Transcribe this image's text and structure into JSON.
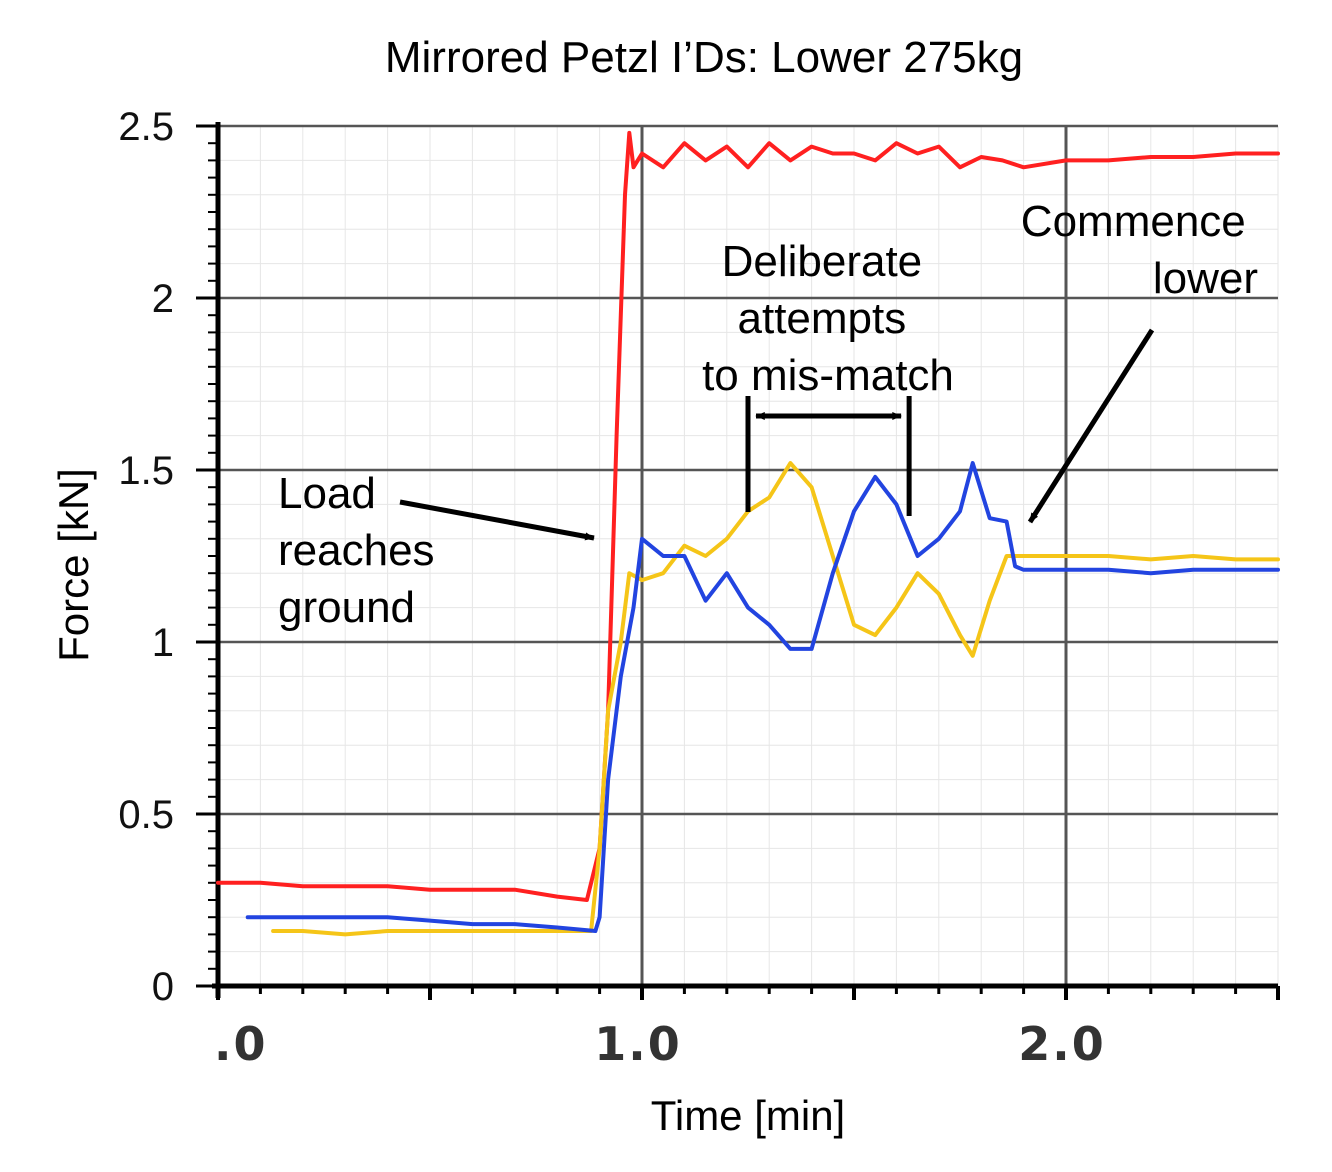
{
  "chart_data": {
    "type": "line",
    "title": "Mirrored Petzl I’Ds: Lower 275kg",
    "xlabel": "Time [min]",
    "ylabel": "Force [kN]",
    "xlim": [
      0,
      2.5
    ],
    "ylim": [
      0,
      2.5
    ],
    "x_ticks": [
      0,
      1,
      2
    ],
    "x_tick_labels": [
      ".0",
      "1.0",
      "2.0"
    ],
    "y_ticks": [
      0,
      0.5,
      1,
      1.5,
      2,
      2.5
    ],
    "y_tick_labels": [
      "0",
      "0.5",
      "1",
      "1.5",
      "2",
      "2.5"
    ],
    "grid": true,
    "legend": "none",
    "series": [
      {
        "color": "#ff2020",
        "x": [
          0.0,
          0.1,
          0.2,
          0.3,
          0.4,
          0.5,
          0.6,
          0.7,
          0.8,
          0.87,
          0.9,
          0.92,
          0.94,
          0.96,
          0.97,
          0.98,
          1.0,
          1.05,
          1.1,
          1.15,
          1.2,
          1.25,
          1.3,
          1.35,
          1.4,
          1.45,
          1.5,
          1.55,
          1.6,
          1.65,
          1.7,
          1.75,
          1.8,
          1.85,
          1.9,
          2.0,
          2.1,
          2.2,
          2.3,
          2.4,
          2.5
        ],
        "y": [
          0.3,
          0.3,
          0.29,
          0.29,
          0.29,
          0.28,
          0.28,
          0.28,
          0.26,
          0.25,
          0.4,
          0.8,
          1.6,
          2.3,
          2.48,
          2.38,
          2.42,
          2.38,
          2.45,
          2.4,
          2.44,
          2.38,
          2.45,
          2.4,
          2.44,
          2.42,
          2.42,
          2.4,
          2.45,
          2.42,
          2.44,
          2.38,
          2.41,
          2.4,
          2.38,
          2.4,
          2.4,
          2.41,
          2.41,
          2.42,
          2.42
        ]
      },
      {
        "color": "#f5c518",
        "x": [
          0.13,
          0.2,
          0.3,
          0.4,
          0.5,
          0.6,
          0.7,
          0.8,
          0.88,
          0.9,
          0.92,
          0.95,
          0.97,
          1.0,
          1.05,
          1.1,
          1.15,
          1.2,
          1.25,
          1.3,
          1.35,
          1.4,
          1.45,
          1.5,
          1.55,
          1.6,
          1.65,
          1.7,
          1.75,
          1.78,
          1.82,
          1.86,
          1.9,
          2.0,
          2.1,
          2.2,
          2.3,
          2.4,
          2.5
        ],
        "y": [
          0.16,
          0.16,
          0.15,
          0.16,
          0.16,
          0.16,
          0.16,
          0.16,
          0.16,
          0.4,
          0.8,
          1.0,
          1.2,
          1.18,
          1.2,
          1.28,
          1.25,
          1.3,
          1.38,
          1.42,
          1.52,
          1.45,
          1.25,
          1.05,
          1.02,
          1.1,
          1.2,
          1.14,
          1.02,
          0.96,
          1.12,
          1.25,
          1.25,
          1.25,
          1.25,
          1.24,
          1.25,
          1.24,
          1.24
        ]
      },
      {
        "color": "#2244e0",
        "x": [
          0.07,
          0.1,
          0.2,
          0.3,
          0.4,
          0.5,
          0.6,
          0.7,
          0.8,
          0.89,
          0.9,
          0.92,
          0.95,
          0.98,
          1.0,
          1.05,
          1.1,
          1.15,
          1.2,
          1.25,
          1.3,
          1.35,
          1.4,
          1.45,
          1.5,
          1.55,
          1.6,
          1.65,
          1.7,
          1.75,
          1.78,
          1.82,
          1.86,
          1.88,
          1.9,
          2.0,
          2.1,
          2.2,
          2.3,
          2.4,
          2.5
        ],
        "y": [
          0.2,
          0.2,
          0.2,
          0.2,
          0.2,
          0.19,
          0.18,
          0.18,
          0.17,
          0.16,
          0.2,
          0.6,
          0.9,
          1.1,
          1.3,
          1.25,
          1.25,
          1.12,
          1.2,
          1.1,
          1.05,
          0.98,
          0.98,
          1.2,
          1.38,
          1.48,
          1.4,
          1.25,
          1.3,
          1.38,
          1.52,
          1.36,
          1.35,
          1.22,
          1.21,
          1.21,
          1.21,
          1.2,
          1.21,
          1.21,
          1.21
        ]
      }
    ],
    "annotations": [
      {
        "lines": [
          "Load",
          "reaches",
          "ground"
        ],
        "arrow_to": {
          "x": 0.9,
          "y": 1.3
        }
      },
      {
        "lines": [
          "Deliberate",
          "attempts",
          "to mis-match"
        ],
        "span": {
          "x_start": 1.25,
          "x_end": 1.63
        }
      },
      {
        "lines": [
          "Commence",
          "lower"
        ],
        "arrow_to": {
          "x": 1.88,
          "y": 1.36
        }
      }
    ]
  }
}
